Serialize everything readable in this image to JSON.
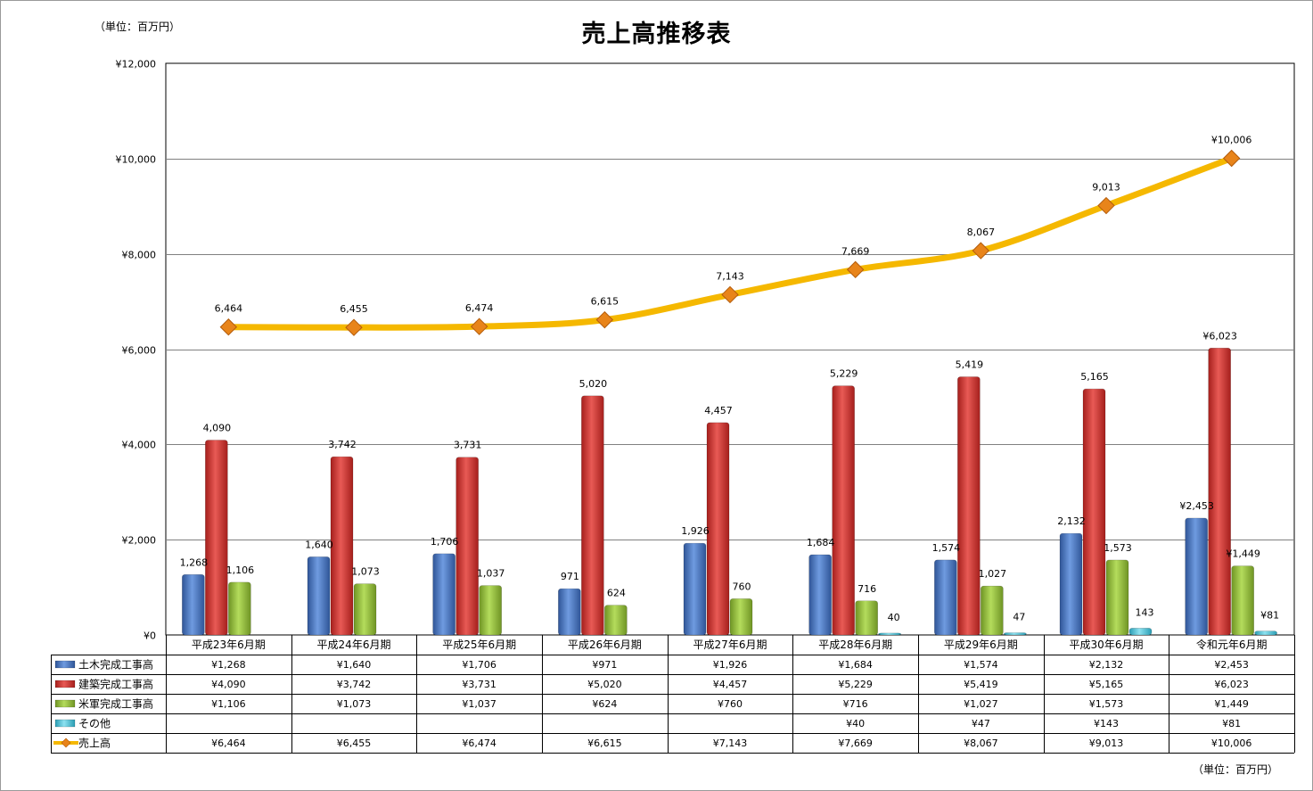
{
  "chart_data": {
    "type": "bar",
    "title": "売上高推移表",
    "unit_label": "（単位：百万円）",
    "yticks": [
      "¥0",
      "¥2,000",
      "¥4,000",
      "¥6,000",
      "¥8,000",
      "¥10,000",
      "¥12,000"
    ],
    "ylim": [
      0,
      12000
    ],
    "grid": true,
    "categories": [
      "平成23年6月期",
      "平成24年6月期",
      "平成25年6月期",
      "平成26年6月期",
      "平成27年6月期",
      "平成28年6月期",
      "平成29年6月期",
      "平成30年6月期",
      "令和元年6月期"
    ],
    "series": [
      {
        "name": "土木完成工事高",
        "kind": "bar",
        "color": "#4472c4",
        "values": [
          1268,
          1640,
          1706,
          971,
          1926,
          1684,
          1574,
          2132,
          2453
        ],
        "bar_labels": [
          "1,268",
          "1,640",
          "1,706",
          "971",
          "1,926",
          "1,684",
          "1,574",
          "2,132",
          "¥2,453"
        ],
        "table_values": [
          "¥1,268",
          "¥1,640",
          "¥1,706",
          "¥971",
          "¥1,926",
          "¥1,684",
          "¥1,574",
          "¥2,132",
          "¥2,453"
        ]
      },
      {
        "name": "建築完成工事高",
        "kind": "bar",
        "color": "#d0322f",
        "values": [
          4090,
          3742,
          3731,
          5020,
          4457,
          5229,
          5419,
          5165,
          6023
        ],
        "bar_labels": [
          "4,090",
          "3,742",
          "3,731",
          "5,020",
          "4,457",
          "5,229",
          "5,419",
          "5,165",
          "¥6,023"
        ],
        "table_values": [
          "¥4,090",
          "¥3,742",
          "¥3,731",
          "¥5,020",
          "¥4,457",
          "¥5,229",
          "¥5,419",
          "¥5,165",
          "¥6,023"
        ]
      },
      {
        "name": "米軍完成工事高",
        "kind": "bar",
        "color": "#93bf3a",
        "values": [
          1106,
          1073,
          1037,
          624,
          760,
          716,
          1027,
          1573,
          1449
        ],
        "bar_labels": [
          "1,106",
          "1,073",
          "1,037",
          "624",
          "760",
          "716",
          "1,027",
          "1,573",
          "¥1,449"
        ],
        "table_values": [
          "¥1,106",
          "¥1,073",
          "¥1,037",
          "¥624",
          "¥760",
          "¥716",
          "¥1,027",
          "¥1,573",
          "¥1,449"
        ]
      },
      {
        "name": "その他",
        "kind": "bar",
        "color": "#4bc3d9",
        "values": [
          null,
          null,
          null,
          null,
          null,
          40,
          47,
          143,
          81
        ],
        "bar_labels": [
          "",
          "",
          "",
          "",
          "",
          "40",
          "47",
          "143",
          "¥81"
        ],
        "table_values": [
          "",
          "",
          "",
          "",
          "",
          "¥40",
          "¥47",
          "¥143",
          "¥81"
        ]
      },
      {
        "name": "売上高",
        "kind": "line",
        "color": "#f5b800",
        "marker_color": "#e8841a",
        "values": [
          6464,
          6455,
          6474,
          6615,
          7143,
          7669,
          8067,
          9013,
          10006
        ],
        "bar_labels": [
          "6,464",
          "6,455",
          "6,474",
          "6,615",
          "7,143",
          "7,669",
          "8,067",
          "9,013",
          "¥10,006"
        ],
        "table_values": [
          "¥6,464",
          "¥6,455",
          "¥6,474",
          "¥6,615",
          "¥7,143",
          "¥7,669",
          "¥8,067",
          "¥9,013",
          "¥10,006"
        ]
      }
    ]
  }
}
